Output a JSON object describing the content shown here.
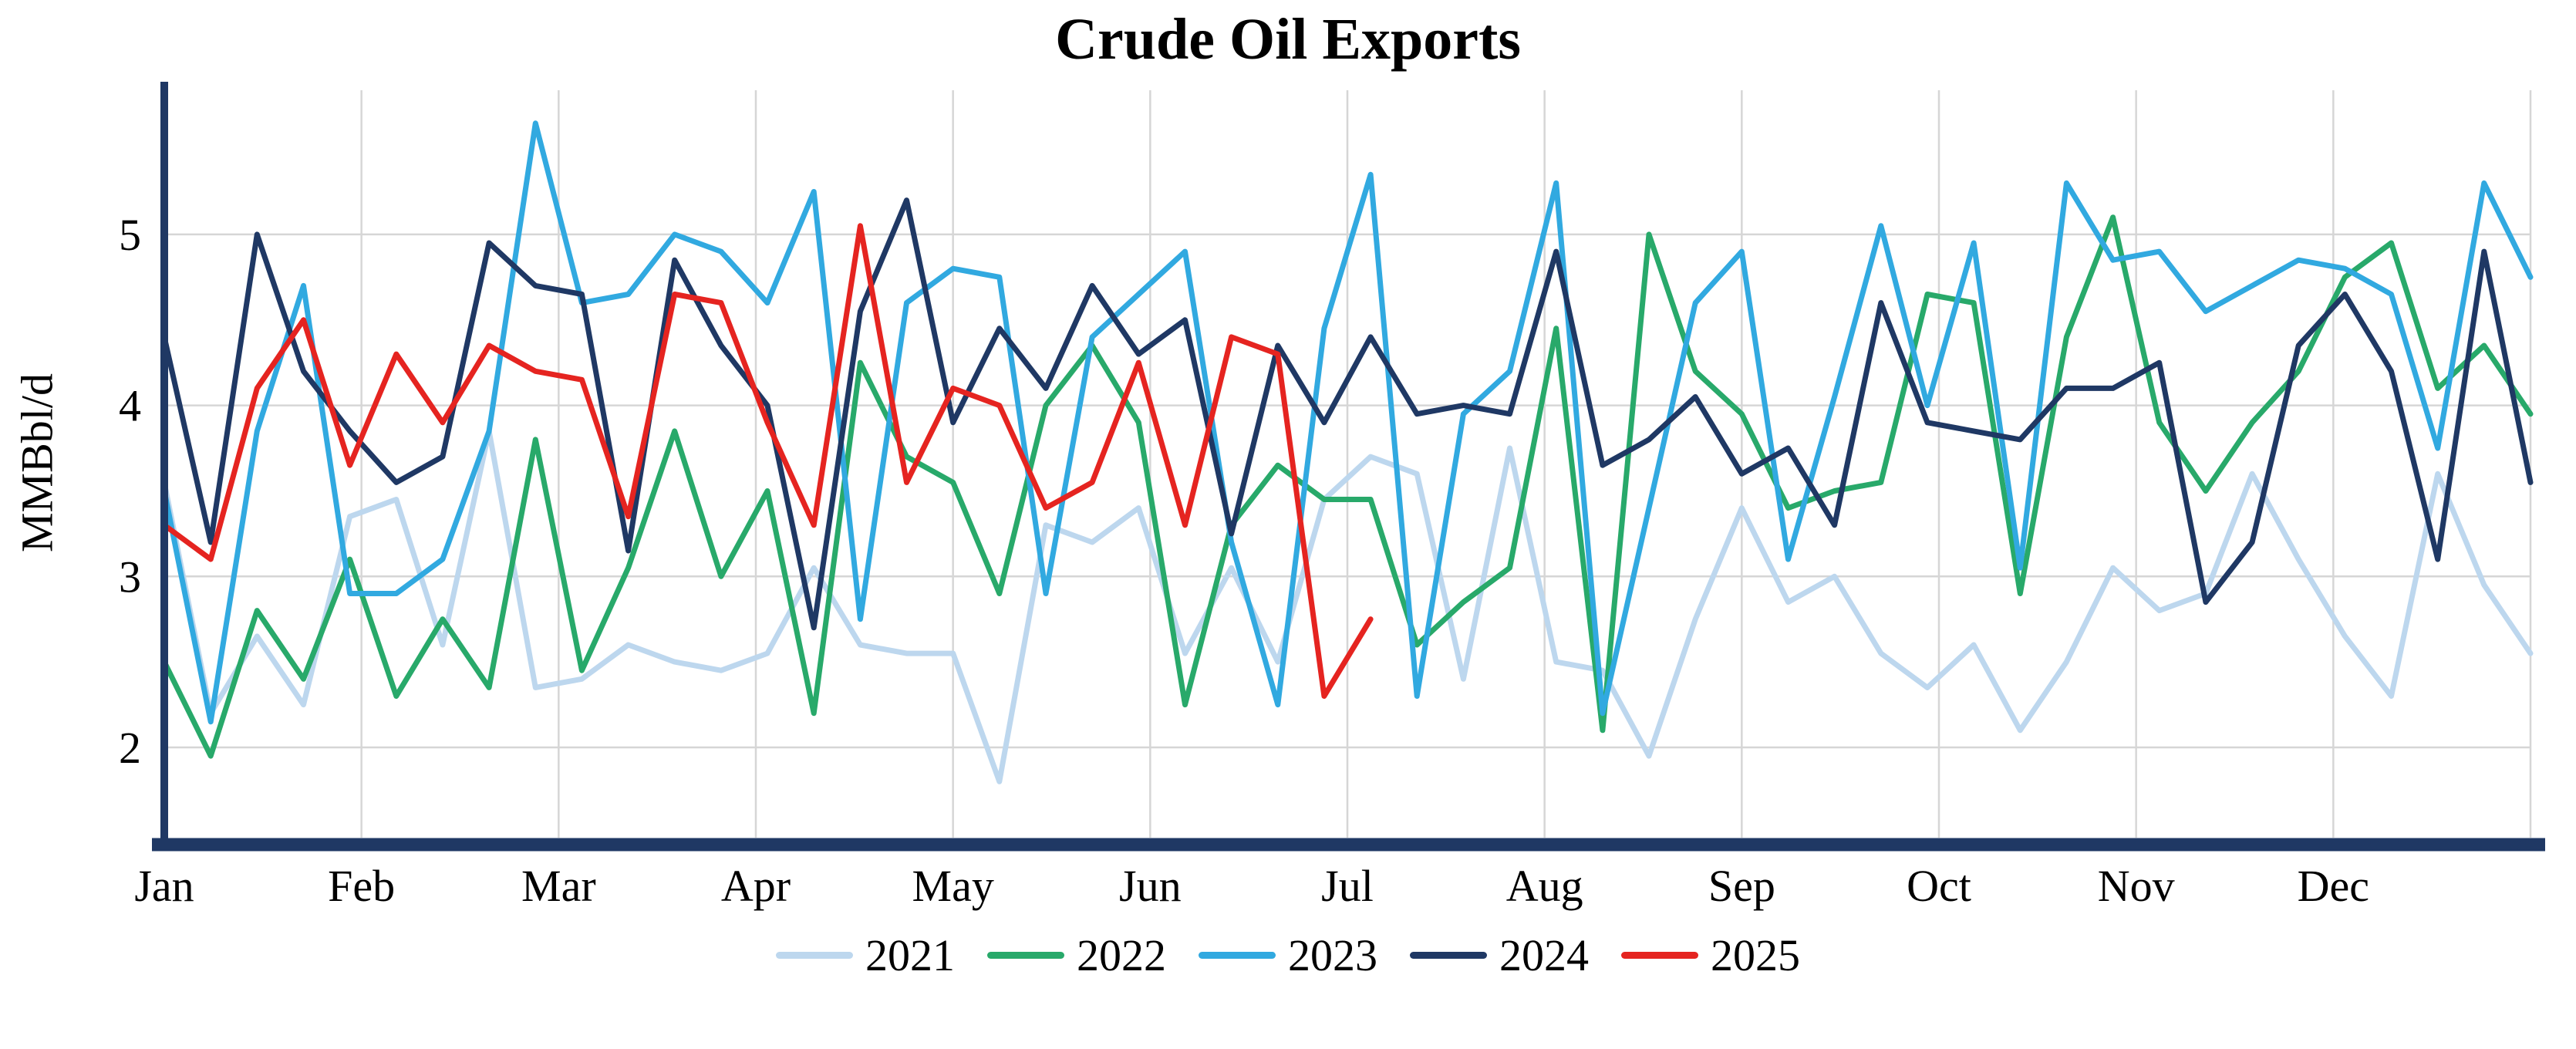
{
  "title": "Crude Oil Exports",
  "ylabel": "MMBbl/d",
  "colors": {
    "axis": "#1F3864",
    "grid": "#D6D6D6",
    "background": "#FFFFFF",
    "title_text": "#000000",
    "series_2021": "#BDD7EE",
    "series_2022": "#28A96A",
    "series_2023": "#31A9E0",
    "series_2024": "#1F3864",
    "series_2025": "#E52420"
  },
  "chart_data": {
    "type": "line",
    "title": "Crude Oil Exports",
    "xlabel": "",
    "ylabel": "MMBbl/d",
    "x_unit": "week-of-year",
    "weeks_per_year": 52,
    "x_tick_labels": [
      "Jan",
      "Feb",
      "Mar",
      "Apr",
      "May",
      "Jun",
      "Jul",
      "Aug",
      "Sep",
      "Oct",
      "Nov",
      "Dec"
    ],
    "y_ticks": [
      2,
      3,
      4,
      5
    ],
    "ylim": [
      1.5,
      5.85
    ],
    "grid": true,
    "legend_position": "bottom",
    "axis_color": "#1F3864",
    "grid_color": "#D6D6D6",
    "series": [
      {
        "name": "2021",
        "color": "#BDD7EE",
        "values": [
          3.55,
          2.2,
          2.65,
          2.25,
          3.35,
          3.45,
          2.6,
          3.85,
          2.35,
          2.4,
          2.6,
          2.5,
          2.45,
          2.55,
          3.05,
          2.6,
          2.55,
          2.55,
          1.8,
          3.3,
          3.2,
          3.4,
          2.55,
          3.05,
          2.5,
          3.45,
          3.7,
          3.6,
          2.4,
          3.75,
          2.5,
          2.45,
          1.95,
          2.75,
          3.4,
          2.85,
          3.0,
          2.55,
          2.35,
          2.6,
          2.1,
          2.5,
          3.05,
          2.8,
          2.9,
          3.6,
          3.1,
          2.65,
          2.3,
          3.6,
          2.95,
          2.55
        ]
      },
      {
        "name": "2022",
        "color": "#28A96A",
        "values": [
          2.5,
          1.95,
          2.8,
          2.4,
          3.1,
          2.3,
          2.75,
          2.35,
          3.8,
          2.45,
          3.05,
          3.85,
          3.0,
          3.5,
          2.2,
          4.25,
          3.7,
          3.55,
          2.9,
          4.0,
          4.35,
          3.9,
          2.25,
          3.3,
          3.65,
          3.45,
          3.45,
          2.6,
          2.85,
          3.05,
          4.45,
          2.1,
          5.0,
          4.2,
          3.95,
          3.4,
          3.5,
          3.55,
          4.65,
          4.6,
          2.9,
          4.4,
          5.1,
          3.9,
          3.5,
          3.9,
          4.2,
          4.75,
          4.95,
          4.1,
          4.35,
          3.95
        ]
      },
      {
        "name": "2023",
        "color": "#31A9E0",
        "values": [
          3.5,
          2.15,
          3.85,
          4.7,
          2.9,
          2.9,
          3.1,
          3.85,
          5.65,
          4.6,
          4.65,
          5.0,
          4.9,
          4.6,
          5.25,
          2.75,
          4.6,
          4.8,
          4.75,
          2.9,
          4.4,
          4.65,
          4.9,
          3.2,
          2.25,
          4.45,
          5.35,
          2.3,
          3.95,
          4.2,
          5.3,
          2.2,
          3.4,
          4.6,
          4.9,
          3.1,
          4.05,
          5.05,
          4.0,
          4.95,
          3.05,
          5.3,
          4.85,
          4.9,
          4.55,
          4.7,
          4.85,
          4.8,
          4.65,
          3.75,
          5.3,
          4.75
        ]
      },
      {
        "name": "2024",
        "color": "#1F3864",
        "values": [
          4.4,
          3.2,
          5.0,
          4.2,
          3.85,
          3.55,
          3.7,
          4.95,
          4.7,
          4.65,
          3.15,
          4.85,
          4.35,
          4.0,
          2.7,
          4.55,
          5.2,
          3.9,
          4.45,
          4.1,
          4.7,
          4.3,
          4.5,
          3.25,
          4.35,
          3.9,
          4.4,
          3.95,
          4.0,
          3.95,
          4.9,
          3.65,
          3.8,
          4.05,
          3.6,
          3.75,
          3.3,
          4.6,
          3.9,
          3.85,
          3.8,
          4.1,
          4.1,
          4.25,
          2.85,
          3.2,
          4.35,
          4.65,
          4.2,
          3.1,
          4.9,
          3.55
        ]
      },
      {
        "name": "2025",
        "color": "#E52420",
        "values": [
          3.3,
          3.1,
          4.1,
          4.5,
          3.65,
          4.3,
          3.9,
          4.35,
          4.2,
          4.15,
          3.35,
          4.65,
          4.6,
          3.9,
          3.3,
          5.05,
          3.55,
          4.1,
          4.0,
          3.4,
          3.55,
          4.25,
          3.3,
          4.4,
          4.3,
          2.3,
          2.75
        ]
      }
    ]
  }
}
